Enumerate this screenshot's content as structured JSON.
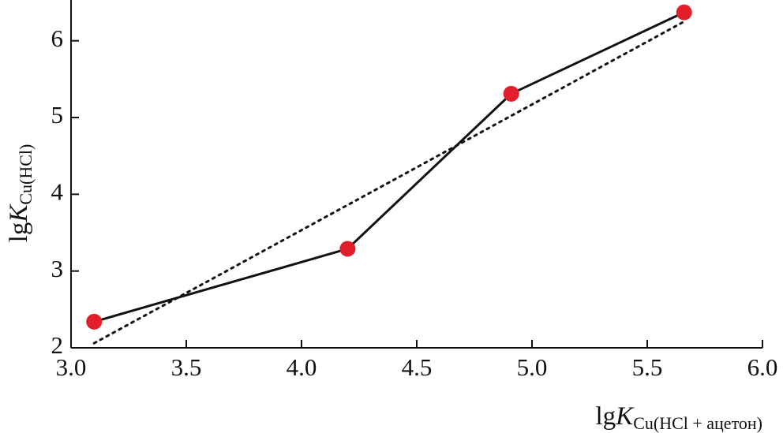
{
  "chart_data": {
    "type": "line",
    "xlabel": {
      "main": "lg",
      "italic": "K",
      "sub": "Cu(HCl + ацетон)"
    },
    "ylabel": {
      "main": "lg",
      "italic": "K",
      "sub": "Cu(HCl)"
    },
    "xlim": [
      3.0,
      6.0
    ],
    "xticks": [
      {
        "value": 3.0,
        "label": "3.0"
      },
      {
        "value": 3.5,
        "label": "3.5"
      },
      {
        "value": 4.0,
        "label": "4.0"
      },
      {
        "value": 4.5,
        "label": "4.5"
      },
      {
        "value": 5.0,
        "label": "5.0"
      },
      {
        "value": 5.5,
        "label": "5.5"
      },
      {
        "value": 6.0,
        "label": "6.0"
      }
    ],
    "ylim": [
      2,
      6.5
    ],
    "yticks": [
      2,
      3,
      4,
      5,
      6
    ],
    "series": [
      {
        "x": [
          3.1,
          4.2,
          4.91,
          5.66
        ],
        "values": [
          2.34,
          3.29,
          5.31,
          6.37
        ],
        "color": "#111111",
        "marker_color": "#e31e2a",
        "line_style": "solid"
      },
      {
        "x": [
          3.1,
          5.66
        ],
        "values": [
          2.06,
          6.25
        ],
        "color": "#111111",
        "line_style": "dotted"
      }
    ]
  }
}
